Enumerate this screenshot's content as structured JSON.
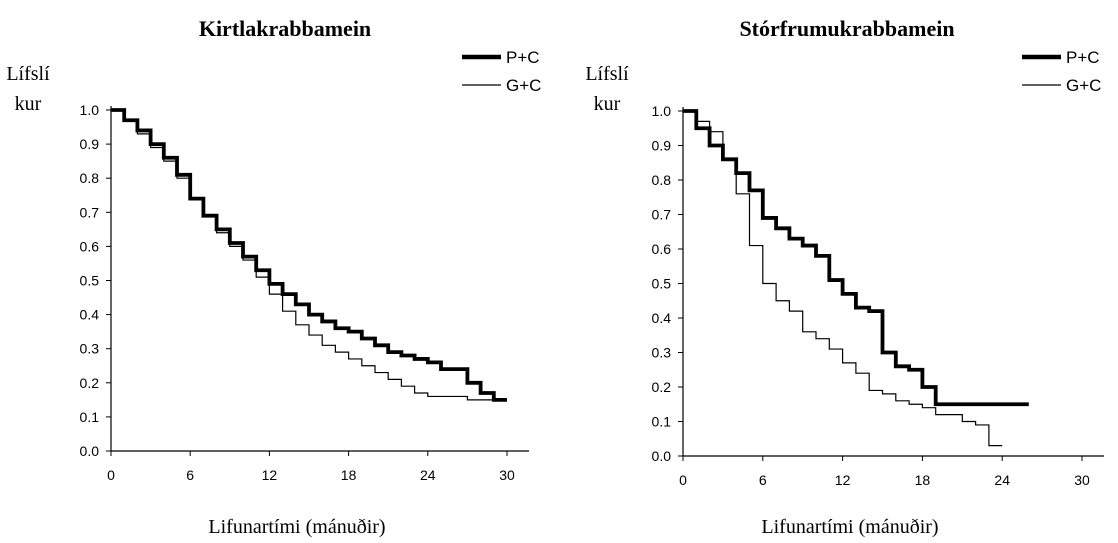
{
  "chart_data": [
    {
      "type": "line",
      "title": "Kirtlakrabbamein",
      "ylabel_lines": [
        "Lífslí",
        "kur"
      ],
      "xlabel": "Lifunartími (mánuðir)",
      "xlim": [
        0,
        30
      ],
      "ylim": [
        0,
        1
      ],
      "xticks": [
        "0",
        "6",
        "12",
        "18",
        "24",
        "30"
      ],
      "yticks": [
        "0.0",
        "0.1",
        "0.2",
        "0.3",
        "0.4",
        "0.5",
        "0.6",
        "0.7",
        "0.8",
        "0.9",
        "1.0"
      ],
      "legend_position": "top-right",
      "series": [
        {
          "name": "P+C",
          "weight": "bold",
          "x": [
            0,
            1,
            2,
            3,
            4,
            5,
            6,
            7,
            8,
            9,
            10,
            11,
            12,
            13,
            14,
            15,
            16,
            17,
            18,
            19,
            20,
            21,
            22,
            23,
            24,
            25,
            26,
            27,
            28,
            29,
            30
          ],
          "y": [
            1.0,
            0.97,
            0.94,
            0.9,
            0.86,
            0.81,
            0.74,
            0.69,
            0.65,
            0.61,
            0.57,
            0.53,
            0.49,
            0.46,
            0.43,
            0.4,
            0.38,
            0.36,
            0.35,
            0.33,
            0.31,
            0.29,
            0.28,
            0.27,
            0.26,
            0.24,
            0.24,
            0.2,
            0.17,
            0.15,
            0.15
          ]
        },
        {
          "name": "G+C",
          "weight": "thin",
          "x": [
            0,
            1,
            2,
            3,
            4,
            5,
            6,
            7,
            8,
            9,
            10,
            11,
            12,
            13,
            14,
            15,
            16,
            17,
            18,
            19,
            20,
            21,
            22,
            23,
            24,
            25,
            26,
            27,
            28,
            29,
            30
          ],
          "y": [
            1.0,
            0.97,
            0.93,
            0.89,
            0.85,
            0.8,
            0.74,
            0.69,
            0.64,
            0.6,
            0.56,
            0.51,
            0.46,
            0.41,
            0.37,
            0.34,
            0.31,
            0.29,
            0.27,
            0.25,
            0.23,
            0.21,
            0.19,
            0.17,
            0.16,
            0.16,
            0.16,
            0.15,
            0.15,
            0.15,
            0.15
          ]
        }
      ]
    },
    {
      "type": "line",
      "title": "Stórfrumukrabbamein",
      "ylabel_lines": [
        "Lífslí",
        "kur"
      ],
      "xlabel": "Lifunartími (mánuðir)",
      "xlim": [
        0,
        30
      ],
      "ylim": [
        0,
        1
      ],
      "xticks": [
        "0",
        "6",
        "12",
        "18",
        "24",
        "30"
      ],
      "yticks": [
        "0.0",
        "0.1",
        "0.2",
        "0.3",
        "0.4",
        "0.5",
        "0.6",
        "0.7",
        "0.8",
        "0.9",
        "1.0"
      ],
      "legend_position": "top-right",
      "series": [
        {
          "name": "P+C",
          "weight": "bold",
          "x": [
            0,
            1,
            2,
            3,
            4,
            5,
            6,
            7,
            8,
            9,
            10,
            11,
            12,
            13,
            14,
            15,
            16,
            17,
            18,
            19,
            20,
            21,
            22,
            23,
            24,
            25,
            26
          ],
          "y": [
            1.0,
            0.95,
            0.9,
            0.86,
            0.82,
            0.77,
            0.69,
            0.66,
            0.63,
            0.61,
            0.58,
            0.51,
            0.47,
            0.43,
            0.42,
            0.3,
            0.26,
            0.25,
            0.2,
            0.15,
            0.15,
            0.15,
            0.15,
            0.15,
            0.15,
            0.15,
            0.15
          ]
        },
        {
          "name": "G+C",
          "weight": "thin",
          "x": [
            0,
            1,
            2,
            3,
            4,
            5,
            6,
            7,
            8,
            9,
            10,
            11,
            12,
            13,
            14,
            15,
            16,
            17,
            18,
            19,
            20,
            21,
            22,
            23,
            24
          ],
          "y": [
            1.0,
            0.97,
            0.94,
            0.86,
            0.76,
            0.61,
            0.5,
            0.45,
            0.42,
            0.36,
            0.34,
            0.31,
            0.27,
            0.24,
            0.19,
            0.18,
            0.16,
            0.15,
            0.14,
            0.12,
            0.12,
            0.1,
            0.09,
            0.03,
            0.03
          ]
        }
      ]
    }
  ]
}
